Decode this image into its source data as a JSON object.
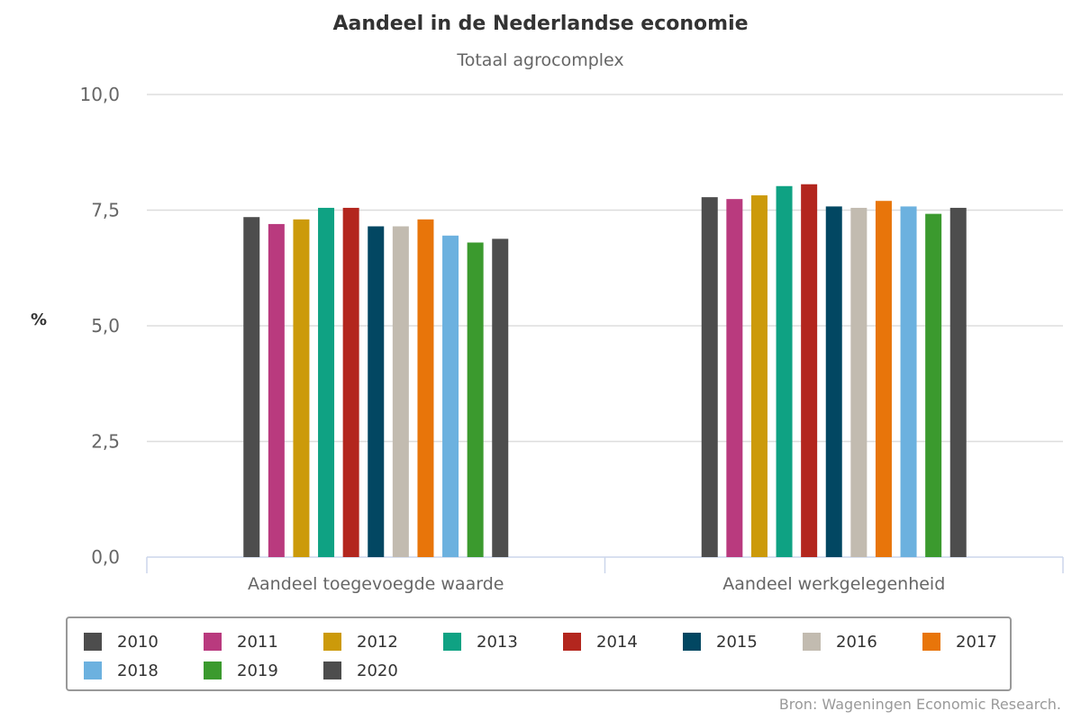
{
  "chart_data": {
    "type": "bar",
    "title": "Aandeel in de Nederlandse economie",
    "subtitle": "Totaal agrocomplex",
    "ylabel": "%",
    "xlabel": "",
    "ylim": [
      0,
      10
    ],
    "yticks": [
      0,
      2.5,
      5,
      7.5,
      10
    ],
    "ytick_labels": [
      "0,0",
      "2,5",
      "5,0",
      "7,5",
      "10,0"
    ],
    "grid": true,
    "legend_position": "bottom",
    "categories": [
      "Aandeel toegevoegde waarde",
      "Aandeel werkgelegenheid"
    ],
    "series": [
      {
        "name": "2010",
        "color": "#4d4d4d",
        "values": [
          7.35,
          7.78
        ]
      },
      {
        "name": "2011",
        "color": "#b93a7e",
        "values": [
          7.2,
          7.74
        ]
      },
      {
        "name": "2012",
        "color": "#cc9a0a",
        "values": [
          7.3,
          7.82
        ]
      },
      {
        "name": "2013",
        "color": "#0fa283",
        "values": [
          7.55,
          8.02
        ]
      },
      {
        "name": "2014",
        "color": "#b3261e",
        "values": [
          7.55,
          8.06
        ]
      },
      {
        "name": "2015",
        "color": "#024762",
        "values": [
          7.15,
          7.58
        ]
      },
      {
        "name": "2016",
        "color": "#c2bbb0",
        "values": [
          7.15,
          7.55
        ]
      },
      {
        "name": "2017",
        "color": "#e8750a",
        "values": [
          7.3,
          7.7
        ]
      },
      {
        "name": "2018",
        "color": "#6cb1df",
        "values": [
          6.95,
          7.58
        ]
      },
      {
        "name": "2019",
        "color": "#3b9a2e",
        "values": [
          6.8,
          7.42
        ]
      },
      {
        "name": "2020",
        "color": "#4d4d4d",
        "values": [
          6.88,
          7.55
        ]
      }
    ],
    "source": "Bron: Wageningen Economic Research."
  }
}
